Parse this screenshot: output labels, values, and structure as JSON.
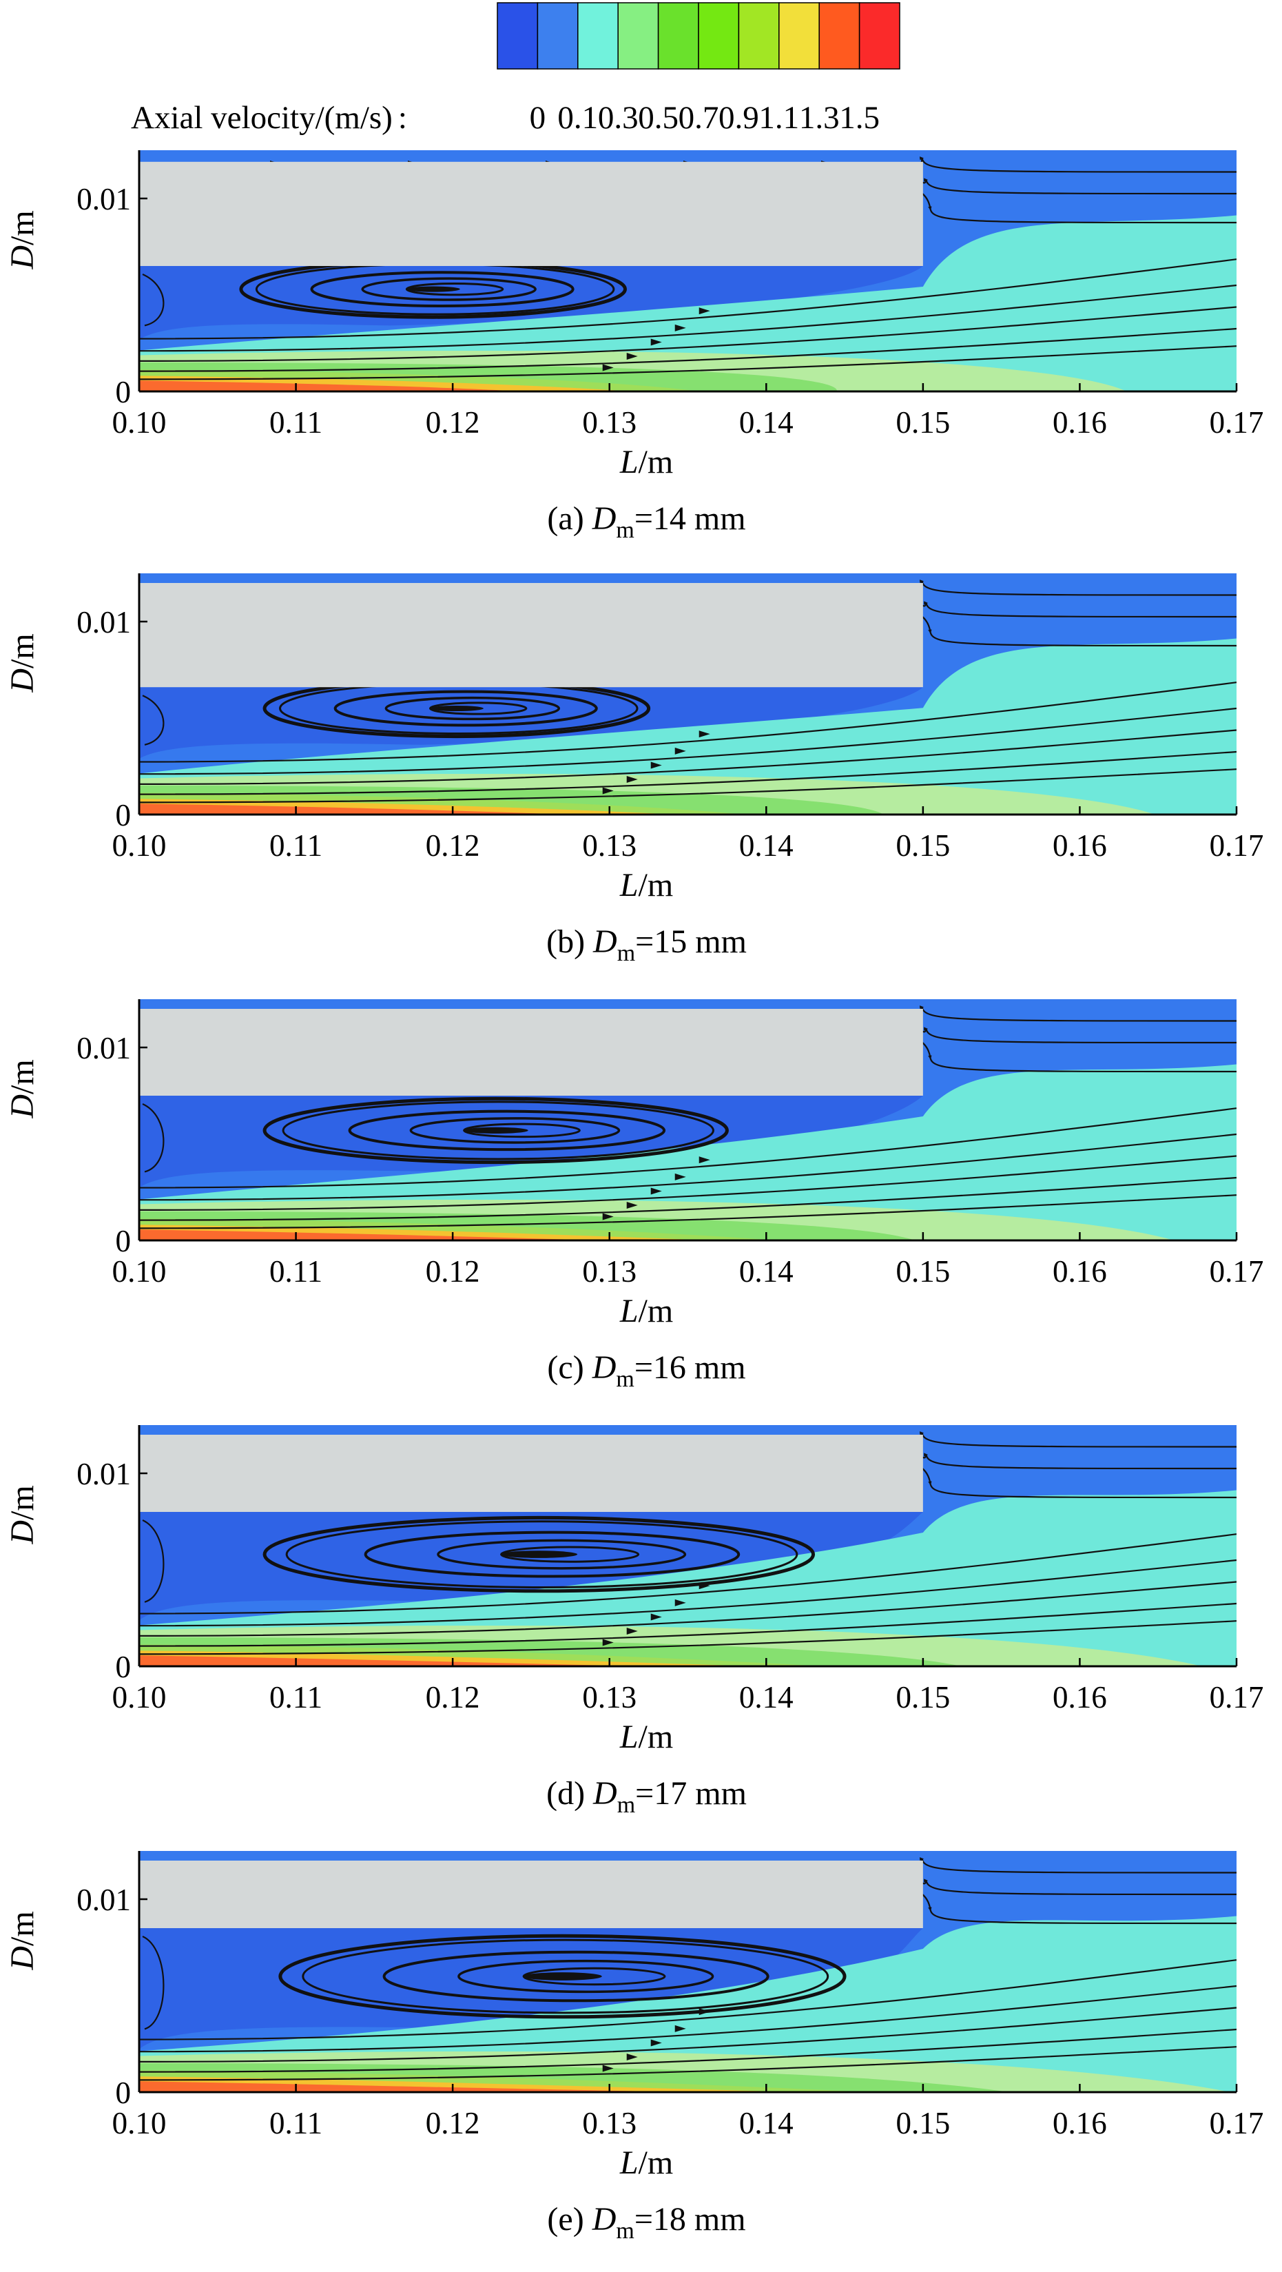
{
  "colorbar": {
    "title": "Axial velocity/(m/s)",
    "separator": ":",
    "levels": [
      "0",
      "0.1",
      "0.3",
      "0.5",
      "0.7",
      "0.9",
      "1.1",
      "1.3",
      "1.5"
    ],
    "colors": [
      "#2a52e8",
      "#3d80ee",
      "#71f2dc",
      "#86ef82",
      "#6ae12c",
      "#74e812",
      "#a2e624",
      "#f2df3a",
      "#ff5a1f",
      "#fb2a2a"
    ]
  },
  "palette": {
    "block": "#d4d8d8",
    "region_colors": [
      "#3679ee",
      "#2f63e6",
      "#6fe8da",
      "#b6eca0",
      "#86e070",
      "#9ede5a",
      "#f4c330",
      "#fb6a2e"
    ],
    "streamline": "#111111"
  },
  "chart_data": [
    {
      "type": "contour",
      "panel": "a",
      "caption_prefix": "(a)",
      "caption_var": "D",
      "caption_sub": "m",
      "caption_value": "=14 mm",
      "D_m_mm": 14,
      "xlabel_var": "L",
      "xlabel_unit": "/m",
      "ylabel_var": "D",
      "ylabel_unit": "/m",
      "xlim": [
        0.1,
        0.17
      ],
      "ylim": [
        0,
        0.0125
      ],
      "xticks": [
        "0.10",
        "0.11",
        "0.12",
        "0.13",
        "0.14",
        "0.15",
        "0.16",
        "0.17"
      ],
      "yticks": [
        "0",
        "0.01"
      ],
      "block": {
        "x": [
          0.1,
          0.15
        ],
        "y": [
          0.0065,
          0.0119
        ]
      },
      "vortex": {
        "x": [
          0.1065,
          0.131
        ],
        "center_x": 0.116,
        "center_y": 0.0053,
        "height": 0.0029
      },
      "core_extent_x": 0.134
    },
    {
      "type": "contour",
      "panel": "b",
      "caption_prefix": "(b)",
      "caption_var": "D",
      "caption_sub": "m",
      "caption_value": "=15 mm",
      "D_m_mm": 15,
      "xlabel_var": "L",
      "xlabel_unit": "/m",
      "ylabel_var": "D",
      "ylabel_unit": "/m",
      "xlim": [
        0.1,
        0.17
      ],
      "ylim": [
        0,
        0.0125
      ],
      "xticks": [
        "0.10",
        "0.11",
        "0.12",
        "0.13",
        "0.14",
        "0.15",
        "0.16",
        "0.17"
      ],
      "yticks": [
        "0",
        "0.01"
      ],
      "block": {
        "x": [
          0.1,
          0.15
        ],
        "y": [
          0.0066,
          0.012
        ]
      },
      "vortex": {
        "x": [
          0.108,
          0.1325
        ],
        "center_x": 0.118,
        "center_y": 0.0055,
        "height": 0.0029
      },
      "core_extent_x": 0.137
    },
    {
      "type": "contour",
      "panel": "c",
      "caption_prefix": "(c)",
      "caption_var": "D",
      "caption_sub": "m",
      "caption_value": "=16 mm",
      "D_m_mm": 16,
      "xlabel_var": "L",
      "xlabel_unit": "/m",
      "ylabel_var": "D",
      "ylabel_unit": "/m",
      "xlim": [
        0.1,
        0.17
      ],
      "ylim": [
        0,
        0.0125
      ],
      "xticks": [
        "0.10",
        "0.11",
        "0.12",
        "0.13",
        "0.14",
        "0.15",
        "0.16",
        "0.17"
      ],
      "yticks": [
        "0",
        "0.01"
      ],
      "block": {
        "x": [
          0.1,
          0.15
        ],
        "y": [
          0.0075,
          0.012
        ]
      },
      "vortex": {
        "x": [
          0.108,
          0.1375
        ],
        "center_x": 0.12,
        "center_y": 0.0057,
        "height": 0.0033
      },
      "core_extent_x": 0.139
    },
    {
      "type": "contour",
      "panel": "d",
      "caption_prefix": "(d)",
      "caption_var": "D",
      "caption_sub": "m",
      "caption_value": "=17 mm",
      "D_m_mm": 17,
      "xlabel_var": "L",
      "xlabel_unit": "/m",
      "ylabel_var": "D",
      "ylabel_unit": "/m",
      "xlim": [
        0.1,
        0.17
      ],
      "ylim": [
        0,
        0.0125
      ],
      "xticks": [
        "0.10",
        "0.11",
        "0.12",
        "0.13",
        "0.14",
        "0.15",
        "0.16",
        "0.17"
      ],
      "yticks": [
        "0",
        "0.01"
      ],
      "block": {
        "x": [
          0.1,
          0.15
        ],
        "y": [
          0.008,
          0.012
        ]
      },
      "vortex": {
        "x": [
          0.108,
          0.143
        ],
        "center_x": 0.122,
        "center_y": 0.0058,
        "height": 0.0038
      },
      "core_extent_x": 0.142
    },
    {
      "type": "contour",
      "panel": "e",
      "caption_prefix": "(e)",
      "caption_var": "D",
      "caption_sub": "m",
      "caption_value": "=18 mm",
      "D_m_mm": 18,
      "xlabel_var": "L",
      "xlabel_unit": "/m",
      "ylabel_var": "D",
      "ylabel_unit": "/m",
      "xlim": [
        0.1,
        0.17
      ],
      "ylim": [
        0,
        0.0125
      ],
      "xticks": [
        "0.10",
        "0.11",
        "0.12",
        "0.13",
        "0.14",
        "0.15",
        "0.16",
        "0.17"
      ],
      "yticks": [
        "0",
        "0.01"
      ],
      "block": {
        "x": [
          0.1,
          0.15
        ],
        "y": [
          0.0085,
          0.012
        ]
      },
      "vortex": {
        "x": [
          0.109,
          0.145
        ],
        "center_x": 0.124,
        "center_y": 0.006,
        "height": 0.0042
      },
      "core_extent_x": 0.145
    }
  ]
}
